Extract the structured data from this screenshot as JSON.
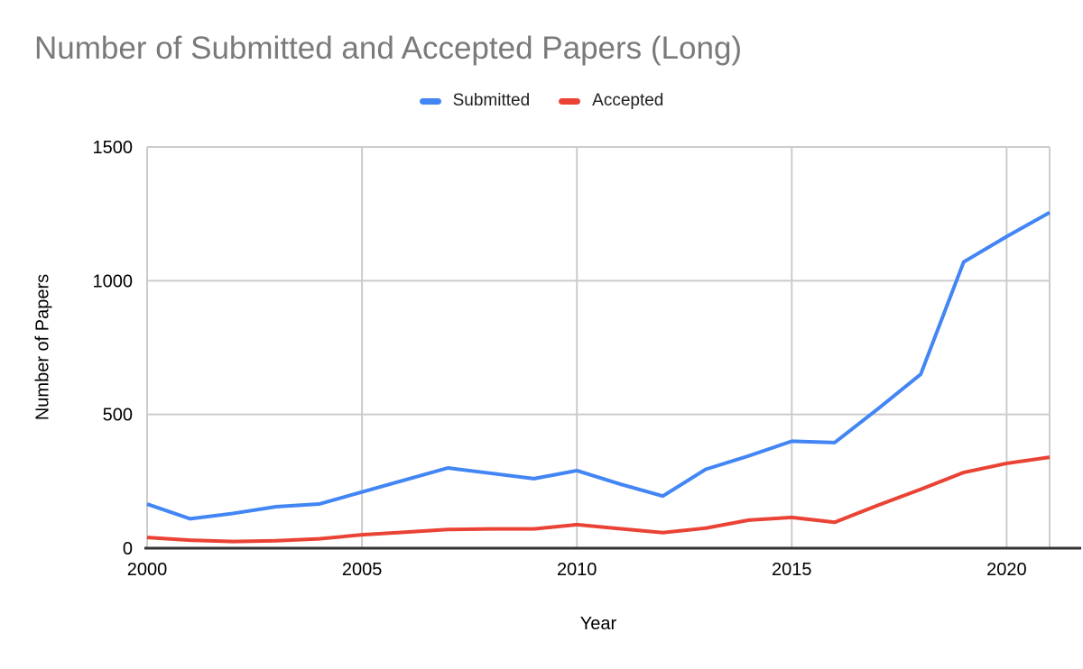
{
  "chart_data": {
    "type": "line",
    "title": "Number of Submitted and Accepted Papers (Long)",
    "xlabel": "Year",
    "ylabel": "Number of Papers",
    "x": [
      2000,
      2001,
      2002,
      2003,
      2004,
      2005,
      2006,
      2007,
      2008,
      2009,
      2010,
      2011,
      2012,
      2013,
      2014,
      2015,
      2016,
      2017,
      2018,
      2019,
      2020,
      2021
    ],
    "series": [
      {
        "name": "Submitted",
        "color": "#4285f4",
        "values": [
          165,
          110,
          130,
          155,
          165,
          210,
          255,
          300,
          280,
          260,
          290,
          240,
          195,
          295,
          345,
          400,
          395,
          520,
          650,
          1070,
          1165,
          1255
        ]
      },
      {
        "name": "Accepted",
        "color": "#ea4335",
        "values": [
          40,
          30,
          25,
          28,
          35,
          50,
          60,
          70,
          72,
          72,
          88,
          73,
          58,
          75,
          105,
          115,
          97,
          160,
          220,
          283,
          317,
          340
        ]
      }
    ],
    "xlim": [
      2000,
      2021
    ],
    "ylim": [
      0,
      1500
    ],
    "xticks": [
      2000,
      2005,
      2010,
      2015,
      2020
    ],
    "yticks": [
      0,
      500,
      1000,
      1500
    ],
    "grid": true,
    "legend_position": "top"
  },
  "colors": {
    "background": "#ffffff",
    "title_text": "#7a7a7a",
    "legend_text": "#212121",
    "tick_text": "#000000",
    "gridline": "#cccccc",
    "axis_line": "#333333"
  }
}
